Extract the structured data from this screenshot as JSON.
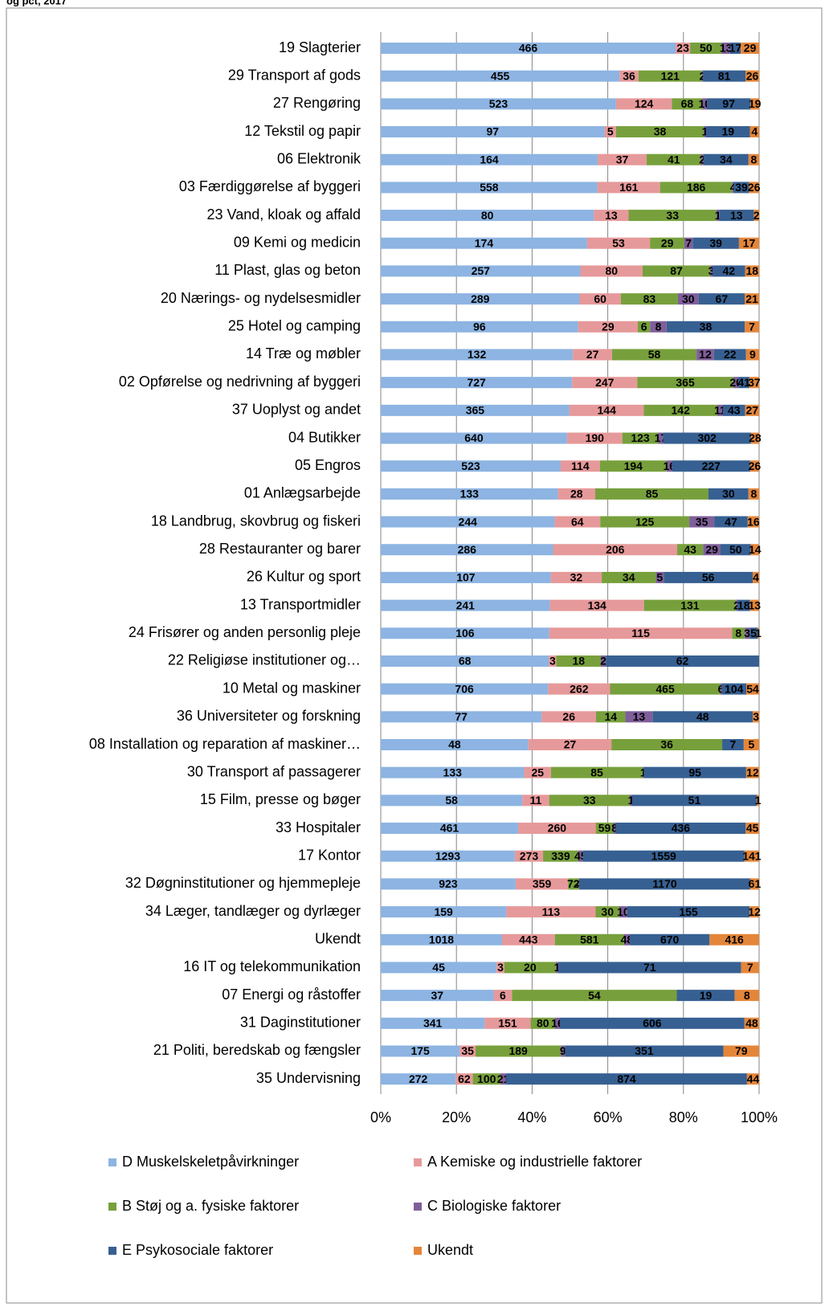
{
  "chart_data": {
    "type": "stacked-bar-100",
    "title": "og pct, 2017",
    "categories": [
      "19 Slagterier",
      "29 Transport af gods",
      "27 Rengøring",
      "12 Tekstil og papir",
      "06 Elektronik",
      "03 Færdiggørelse af byggeri",
      "23 Vand, kloak og affald",
      "09 Kemi og medicin",
      "11 Plast, glas og beton",
      "20 Nærings- og nydelsesmidler",
      "25 Hotel og camping",
      "14 Træ og møbler",
      "02 Opførelse og nedrivning af byggeri",
      "37 Uoplyst og andet",
      "04 Butikker",
      "05 Engros",
      "01 Anlægsarbejde",
      "18 Landbrug, skovbrug og fiskeri",
      "28 Restauranter og barer",
      "26 Kultur og sport",
      "13 Transportmidler",
      "24 Frisører og anden personlig pleje",
      "22 Religiøse institutioner og…",
      "10 Metal og maskiner",
      "36 Universiteter og forskning",
      "08 Installation og reparation af maskiner…",
      "30 Transport af passagerer",
      "15 Film, presse og bøger",
      "33 Hospitaler",
      "17 Kontor",
      "32 Døgninstitutioner og hjemmepleje",
      "34 Læger, tandlæger og dyrlæger",
      "Ukendt",
      "16 IT og telekommunikation",
      "07 Energi og råstoffer",
      "31 Daginstitutioner",
      "21 Politi, beredskab og fængsler",
      "35 Undervisning"
    ],
    "series": [
      {
        "name": "D Muskelskeletpåvirkninger",
        "color": "#8db4e2",
        "values": [
          466,
          455,
          523,
          97,
          164,
          558,
          80,
          174,
          257,
          289,
          96,
          132,
          727,
          365,
          640,
          523,
          133,
          244,
          286,
          107,
          241,
          106,
          68,
          706,
          77,
          48,
          133,
          58,
          461,
          1293,
          923,
          159,
          1018,
          45,
          37,
          341,
          175,
          272
        ]
      },
      {
        "name": "A Kemiske og industrielle faktorer",
        "color": "#e6999a",
        "values": [
          23,
          36,
          124,
          5,
          37,
          161,
          13,
          53,
          80,
          60,
          29,
          27,
          247,
          144,
          190,
          114,
          28,
          64,
          206,
          32,
          134,
          115,
          3,
          262,
          26,
          27,
          25,
          11,
          260,
          273,
          359,
          113,
          443,
          3,
          6,
          151,
          35,
          62
        ]
      },
      {
        "name": "B Støj og a. fysiske faktorer",
        "color": "#77a03c",
        "values": [
          50,
          121,
          68,
          38,
          41,
          186,
          33,
          29,
          87,
          83,
          6,
          58,
          365,
          142,
          123,
          194,
          85,
          125,
          43,
          34,
          131,
          8,
          18,
          465,
          14,
          36,
          85,
          33,
          59,
          339,
          72,
          30,
          581,
          20,
          54,
          80,
          189,
          100
        ]
      },
      {
        "name": "C Biologiske faktorer",
        "color": "#7f5f9a",
        "values": [
          13,
          2,
          10,
          1,
          2,
          4,
          1,
          7,
          3,
          30,
          8,
          12,
          20,
          11,
          17,
          16,
          null,
          35,
          29,
          5,
          2,
          3,
          2,
          6,
          13,
          null,
          1,
          1,
          8,
          45,
          4,
          10,
          48,
          1,
          null,
          16,
          9,
          21
        ]
      },
      {
        "name": "E Psykosociale faktorer",
        "color": "#376092",
        "values": [
          17,
          81,
          97,
          19,
          34,
          39,
          13,
          39,
          42,
          67,
          38,
          22,
          41,
          43,
          302,
          227,
          30,
          47,
          50,
          56,
          18,
          5,
          62,
          104,
          48,
          7,
          95,
          51,
          436,
          1559,
          1170,
          155,
          670,
          71,
          19,
          606,
          351,
          874
        ]
      },
      {
        "name": "Ukendt",
        "color": "#e4863a",
        "values": [
          29,
          26,
          19,
          4,
          8,
          26,
          2,
          17,
          18,
          21,
          7,
          9,
          37,
          27,
          28,
          26,
          8,
          16,
          14,
          4,
          13,
          1,
          null,
          54,
          3,
          5,
          12,
          1,
          45,
          141,
          61,
          12,
          416,
          7,
          8,
          48,
          79,
          44
        ]
      }
    ],
    "xlim": [
      0,
      100
    ],
    "xticks": [
      {
        "value": 0,
        "label": "0%"
      },
      {
        "value": 20,
        "label": "20%"
      },
      {
        "value": 40,
        "label": "40%"
      },
      {
        "value": 60,
        "label": "60%"
      },
      {
        "value": 80,
        "label": "80%"
      },
      {
        "value": 100,
        "label": "100%"
      }
    ],
    "grid": true
  }
}
